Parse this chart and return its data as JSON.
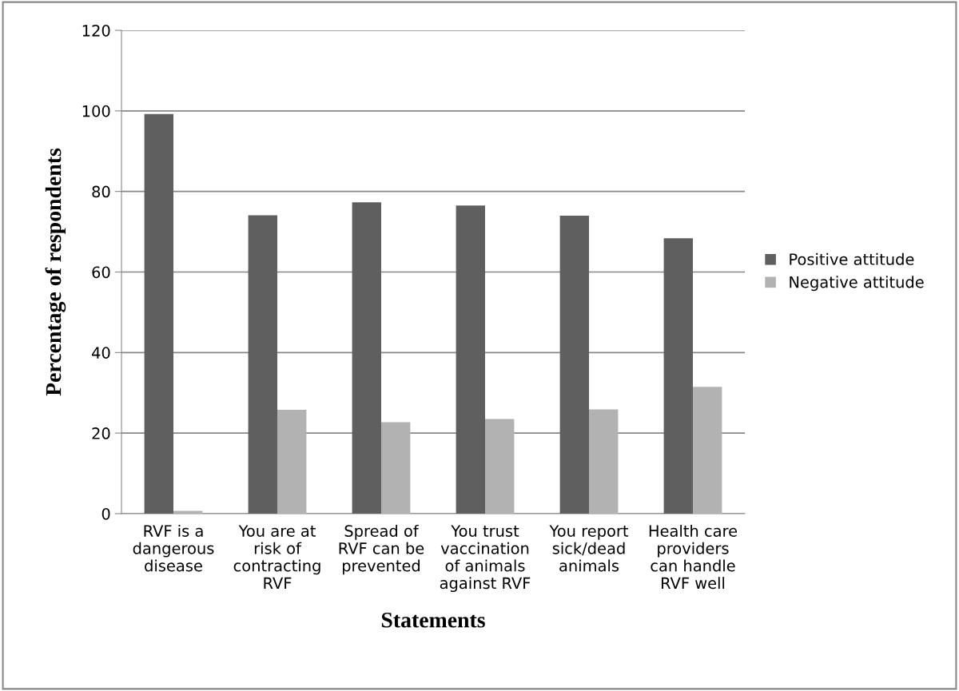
{
  "chart_data": {
    "type": "bar",
    "xlabel": "Statements",
    "ylabel": "Percentage of respondents",
    "categories": [
      "RVF is a\ndangerous\ndisease",
      "You are at\nrisk of\ncontracting\nRVF",
      "Spread of\nRVF can be\nprevented",
      "You trust\nvaccination\nof animals\nagainst RVF",
      "You report\nsick/dead\nanimals",
      "Health care\nproviders\ncan handle\nRVF well"
    ],
    "series": [
      {
        "name": "Positive attitude",
        "color": "#5f5f5f",
        "values": [
          99.2,
          74.1,
          77.3,
          76.5,
          74.0,
          68.4
        ]
      },
      {
        "name": "Negative attitude",
        "color": "#b2b2b2",
        "values": [
          0.7,
          25.8,
          22.7,
          23.5,
          25.9,
          31.5
        ]
      }
    ],
    "ylim": [
      0,
      120
    ],
    "yticks": [
      0,
      20,
      40,
      60,
      80,
      100,
      120
    ],
    "grid": "y",
    "legend": "right"
  }
}
